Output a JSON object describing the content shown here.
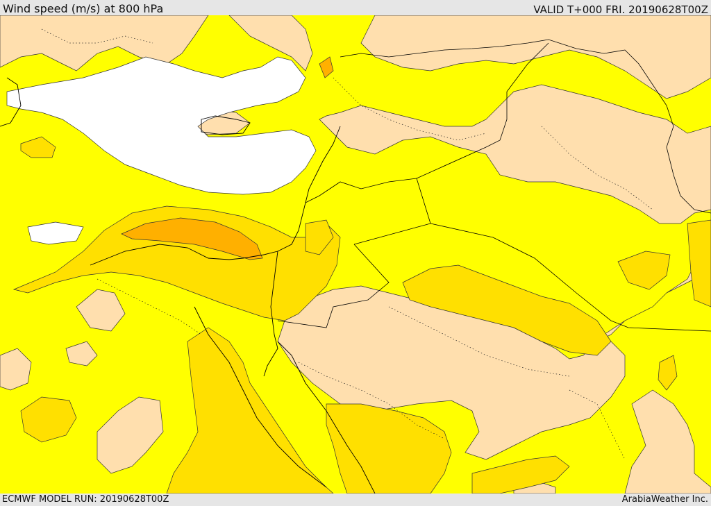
{
  "header": {
    "title": "Wind speed (m/s) at 800 hPa",
    "valid": "VALID T+000 FRI. 20190628T00Z"
  },
  "footer": {
    "model_run": "ECMWF MODEL RUN: 20190628T00Z",
    "credit": "ArabiaWeather Inc."
  },
  "colors": {
    "sea_low_wind": "#ffffff",
    "wind_band_1": "#ffdfae",
    "wind_band_2": "#ffff00",
    "wind_band_3": "#ffe000",
    "wind_band_4": "#ffb000",
    "coastline": "#000000",
    "background": "#e6e6e6"
  }
}
